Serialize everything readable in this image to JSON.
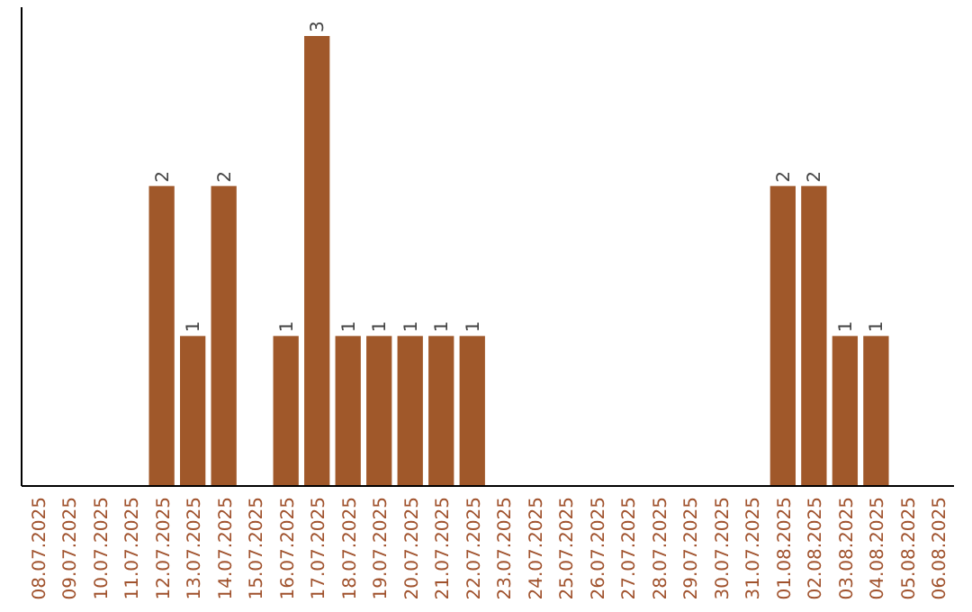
{
  "chart_data": {
    "type": "bar",
    "categories": [
      "08.07.2025",
      "09.07.2025",
      "10.07.2025",
      "11.07.2025",
      "12.07.2025",
      "13.07.2025",
      "14.07.2025",
      "15.07.2025",
      "16.07.2025",
      "17.07.2025",
      "18.07.2025",
      "19.07.2025",
      "20.07.2025",
      "21.07.2025",
      "22.07.2025",
      "23.07.2025",
      "24.07.2025",
      "25.07.2025",
      "26.07.2025",
      "27.07.2025",
      "28.07.2025",
      "29.07.2025",
      "30.07.2025",
      "31.07.2025",
      "01.08.2025",
      "02.08.2025",
      "03.08.2025",
      "04.08.2025",
      "05.08.2025",
      "06.08.2025"
    ],
    "values": [
      0,
      0,
      0,
      0,
      2,
      1,
      2,
      0,
      1,
      3,
      1,
      1,
      1,
      1,
      1,
      0,
      0,
      0,
      0,
      0,
      0,
      0,
      0,
      0,
      2,
      2,
      1,
      1,
      0,
      0
    ],
    "value_labels": [
      null,
      null,
      null,
      null,
      "2",
      "1",
      "2",
      null,
      "1",
      "3",
      "1",
      "1",
      "1",
      "1",
      "1",
      null,
      null,
      null,
      null,
      null,
      null,
      null,
      null,
      null,
      "2",
      "2",
      "1",
      "1",
      null,
      null
    ],
    "color": "#a0582a",
    "tick_labels": "x"
  }
}
